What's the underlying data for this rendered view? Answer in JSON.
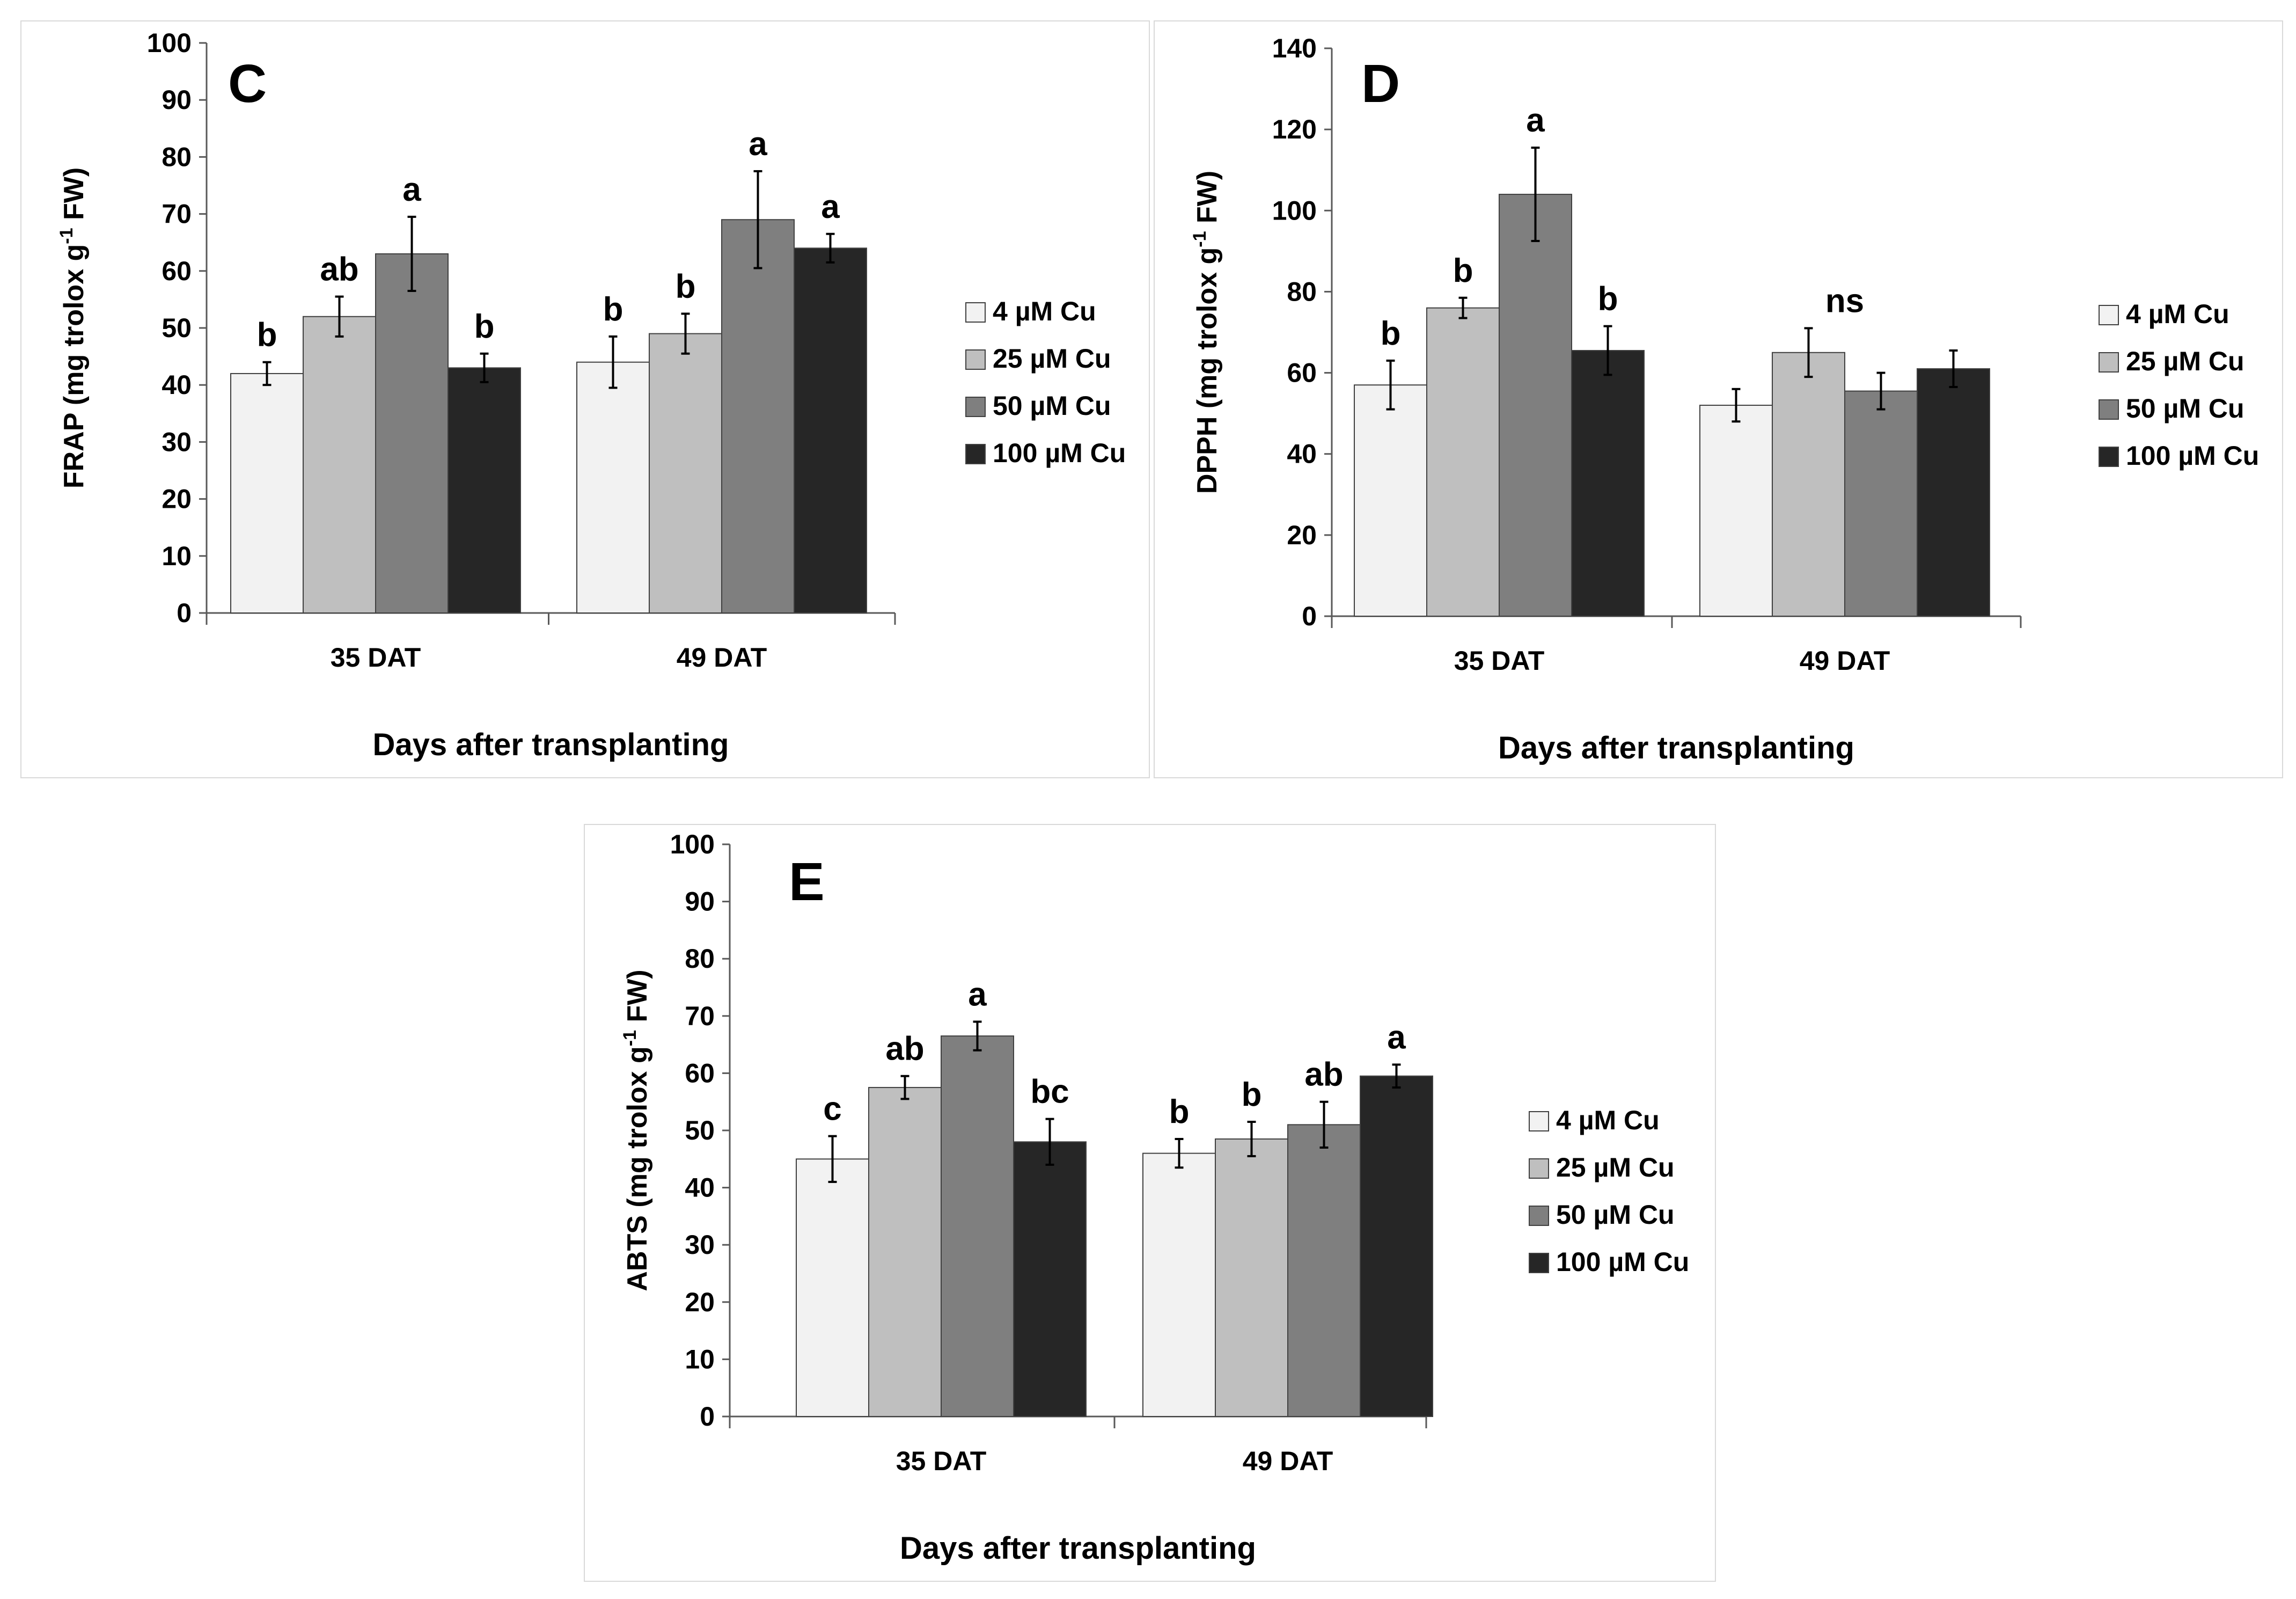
{
  "chart_data": [
    {
      "type": "bar",
      "panel_label": "C",
      "categories": [
        "35 DAT",
        "49 DAT"
      ],
      "xlabel": "Days after transplanting",
      "ylabel": "FRAP (mg trolox g-1 FW)",
      "ylabel_parts": [
        "FRAP (mg trolox g",
        "-1",
        " FW)"
      ],
      "ylim": [
        0,
        100
      ],
      "yticks": [
        0,
        10,
        20,
        30,
        40,
        50,
        60,
        70,
        80,
        90,
        100
      ],
      "series": [
        {
          "name": "4 µM Cu",
          "color": "#f2f2f2",
          "values": [
            42,
            44
          ],
          "errors": [
            2,
            4.5
          ],
          "letters": [
            "b",
            "b"
          ]
        },
        {
          "name": "25 µM Cu",
          "color": "#bfbfbf",
          "values": [
            52,
            49
          ],
          "errors": [
            3.5,
            3.5
          ],
          "letters": [
            "ab",
            "b"
          ]
        },
        {
          "name": "50 µM Cu",
          "color": "#7f7f7f",
          "values": [
            63,
            69
          ],
          "errors": [
            6.5,
            8.5
          ],
          "letters": [
            "a",
            "a"
          ]
        },
        {
          "name": "100 µM Cu",
          "color": "#262626",
          "values": [
            43,
            64
          ],
          "errors": [
            2.5,
            2.5
          ],
          "letters": [
            "b",
            "a"
          ]
        }
      ]
    },
    {
      "type": "bar",
      "panel_label": "D",
      "categories": [
        "35 DAT",
        "49 DAT"
      ],
      "xlabel": "Days after transplanting",
      "ylabel": "DPPH (mg trolox g-1 FW)",
      "ylabel_parts": [
        "DPPH (mg trolox g",
        "-1",
        " FW)"
      ],
      "ylim": [
        0,
        140
      ],
      "yticks": [
        0,
        20,
        40,
        60,
        80,
        100,
        120,
        140
      ],
      "group_letters": [
        "",
        "ns"
      ],
      "series": [
        {
          "name": "4 µM Cu",
          "color": "#f2f2f2",
          "values": [
            57,
            52
          ],
          "errors": [
            6,
            4
          ],
          "letters": [
            "b",
            ""
          ]
        },
        {
          "name": "25 µM Cu",
          "color": "#bfbfbf",
          "values": [
            76,
            65
          ],
          "errors": [
            2.5,
            6
          ],
          "letters": [
            "b",
            ""
          ]
        },
        {
          "name": "50 µM Cu",
          "color": "#7f7f7f",
          "values": [
            104,
            55.5
          ],
          "errors": [
            11.5,
            4.5
          ],
          "letters": [
            "a",
            ""
          ]
        },
        {
          "name": "100 µM Cu",
          "color": "#262626",
          "values": [
            65.5,
            61
          ],
          "errors": [
            6,
            4.5
          ],
          "letters": [
            "b",
            ""
          ]
        }
      ]
    },
    {
      "type": "bar",
      "panel_label": "E",
      "categories": [
        "35 DAT",
        "49 DAT"
      ],
      "xlabel": "Days after transplanting",
      "ylabel": "ABTS (mg trolox g-1 FW)",
      "ylabel_parts": [
        "ABTS (mg trolox g",
        "-1",
        " FW)"
      ],
      "ylim": [
        0,
        100
      ],
      "yticks": [
        0,
        10,
        20,
        30,
        40,
        50,
        60,
        70,
        80,
        90,
        100
      ],
      "series": [
        {
          "name": "4 µM Cu",
          "color": "#f2f2f2",
          "values": [
            45,
            46
          ],
          "errors": [
            4,
            2.5
          ],
          "letters": [
            "c",
            "b"
          ]
        },
        {
          "name": "25 µM Cu",
          "color": "#bfbfbf",
          "values": [
            57.5,
            48.5
          ],
          "errors": [
            2,
            3
          ],
          "letters": [
            "ab",
            "b"
          ]
        },
        {
          "name": "50 µM Cu",
          "color": "#7f7f7f",
          "values": [
            66.5,
            51
          ],
          "errors": [
            2.5,
            4
          ],
          "letters": [
            "a",
            "ab"
          ]
        },
        {
          "name": "100 µM Cu",
          "color": "#262626",
          "values": [
            48,
            59.5
          ],
          "errors": [
            4,
            2
          ],
          "letters": [
            "bc",
            "a"
          ]
        }
      ]
    }
  ]
}
